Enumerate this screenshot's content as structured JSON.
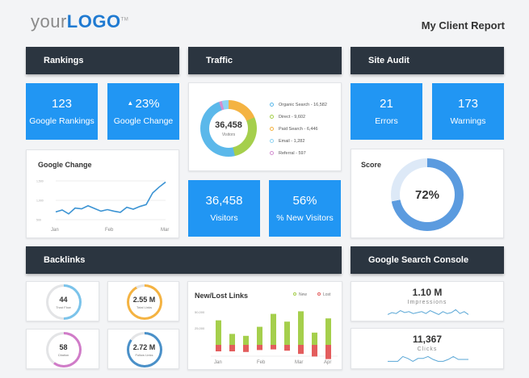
{
  "header": {
    "logo_your": "your",
    "logo_logo": "LOGO",
    "logo_tm": "TM",
    "title": "My Client Report"
  },
  "sections": {
    "rankings": "Rankings",
    "traffic": "Traffic",
    "site_audit": "Site Audit",
    "backlinks": "Backlinks",
    "gsc": "Google Search Console"
  },
  "rankings": {
    "google_rankings": {
      "value": "123",
      "label": "Google Rankings"
    },
    "google_change": {
      "value": "23%",
      "label": "Google Change",
      "icon": "triangle-up-icon"
    }
  },
  "traffic": {
    "total": "36,458",
    "total_label": "Visitors",
    "sources": [
      {
        "label": "Organic Search - 16,582",
        "value": 16582,
        "color": "#5bb8ea"
      },
      {
        "label": "Direct - 9,602",
        "value": 9602,
        "color": "#a5cf4c"
      },
      {
        "label": "Paid Search - 6,446",
        "value": 6446,
        "color": "#f4b342"
      },
      {
        "label": "Email - 1,282",
        "value": 1282,
        "color": "#8fd3f2"
      },
      {
        "label": "Referral - 597",
        "value": 597,
        "color": "#d38ed0"
      }
    ]
  },
  "visitors": {
    "value": "36,458",
    "label": "Visitors"
  },
  "new_visitors": {
    "value": "56%",
    "label": "% New Visitors"
  },
  "site_audit": {
    "errors": {
      "value": "21",
      "label": "Errors"
    },
    "warnings": {
      "value": "173",
      "label": "Warnings"
    },
    "score_title": "Score",
    "score": "72%",
    "score_fraction": 0.72
  },
  "chart_data": [
    {
      "type": "line",
      "title": "Google Change",
      "x_ticks": [
        "Jan",
        "Feb",
        "Mar"
      ],
      "y_ticks": [
        "500",
        "1,000",
        "1,500"
      ],
      "ylim": [
        500,
        1500
      ],
      "values": [
        700,
        750,
        650,
        800,
        780,
        860,
        790,
        720,
        760,
        720,
        690,
        820,
        770,
        840,
        890,
        1190,
        1340,
        1470
      ]
    },
    {
      "type": "bar",
      "title": "New/Lost Links",
      "categories": [
        "Jan",
        "",
        "Feb",
        "",
        "",
        "Mar",
        "",
        "",
        "Apr"
      ],
      "x_ticks": [
        "Jan",
        "Feb",
        "Mar",
        "Apr"
      ],
      "y_ticks": [
        "25,000",
        "50,000"
      ],
      "series": [
        {
          "name": "New",
          "color": "#a5cf4c",
          "values": [
            38000,
            17000,
            14000,
            28000,
            48000,
            36000,
            52000,
            19000,
            41000
          ]
        },
        {
          "name": "Lost",
          "color": "#e35d5d",
          "values": [
            10000,
            10000,
            11000,
            8000,
            7000,
            9000,
            14000,
            18000,
            22000
          ]
        }
      ]
    }
  ],
  "backlinks": [
    {
      "value": "44",
      "label": "Trust Flow",
      "fraction": 0.5,
      "color": "#7bc3ea"
    },
    {
      "value": "2.55 M",
      "label": "Total Links",
      "fraction": 0.92,
      "color": "#f4b342"
    },
    {
      "value": "58",
      "label": "Citation",
      "fraction": 0.6,
      "color": "#d07cc8"
    },
    {
      "value": "2.72 M",
      "label": "Follow Links",
      "fraction": 0.85,
      "color": "#4a90c8"
    }
  ],
  "gsc": {
    "impressions": {
      "value": "1.10 M",
      "label": "Impressions",
      "trend": [
        3,
        5,
        4,
        7,
        5,
        6,
        4,
        5,
        6,
        4,
        7,
        5,
        3,
        6,
        4,
        5,
        8,
        4,
        6,
        3
      ]
    },
    "clicks": {
      "value": "11,367",
      "label": "Clicks",
      "trend": [
        3,
        3,
        3,
        8,
        6,
        3,
        6,
        6,
        8,
        5,
        3,
        3,
        5,
        8,
        5,
        5,
        5
      ]
    }
  }
}
